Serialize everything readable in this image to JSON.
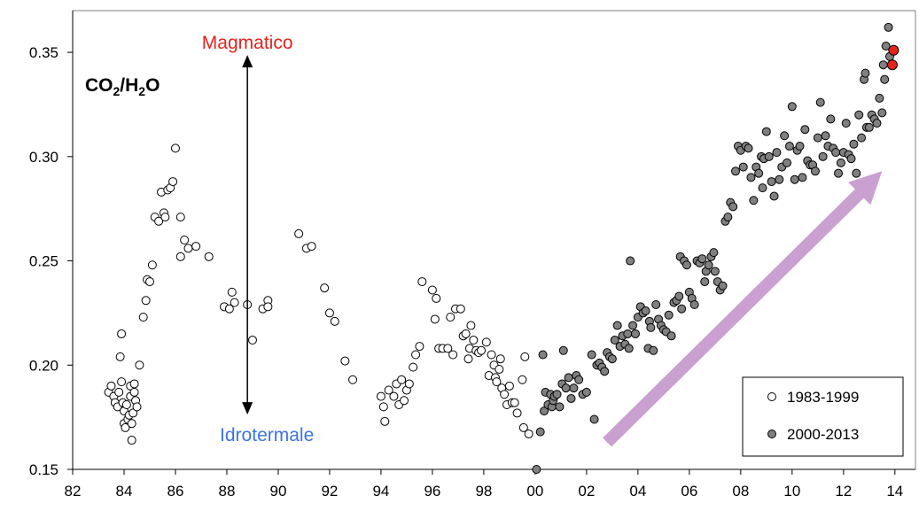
{
  "colors": {
    "open_marker_fill": "#ffffff",
    "marker_stroke": "#000000",
    "filled_marker": "#808080",
    "highlight_marker": "#e4231c",
    "magmatic_text": "#e4231c",
    "hydrothermal_text": "#3b74e8",
    "trend_arrow": "#c9a0d0"
  },
  "chart_data": {
    "type": "scatter",
    "title": "",
    "ratio_label": {
      "base1": "CO",
      "sub1": "2",
      "mid": "/H",
      "sub2": "2",
      "tail": "O"
    },
    "xlabel": "",
    "ylabel": "",
    "xlim": [
      1982,
      2014.8
    ],
    "ylim": [
      0.15,
      0.37
    ],
    "x_ticks": [
      1982,
      1984,
      1986,
      1988,
      1990,
      1992,
      1994,
      1996,
      1998,
      2000,
      2002,
      2004,
      2006,
      2008,
      2010,
      2012,
      2014
    ],
    "x_tick_labels": [
      "82",
      "84",
      "86",
      "88",
      "90",
      "92",
      "94",
      "96",
      "98",
      "00",
      "02",
      "04",
      "06",
      "08",
      "10",
      "12",
      "14"
    ],
    "y_ticks": [
      0.15,
      0.2,
      0.25,
      0.3,
      0.35
    ],
    "y_tick_labels": [
      "0.15",
      "0.20",
      "0.25",
      "0.30",
      "0.35"
    ],
    "grid": false,
    "legend_position": "bottom-right",
    "annotations": {
      "magmatic": "Magmatico",
      "hydrothermal": "Idrotermale",
      "double_arrow": {
        "x": 1988.8,
        "y_from": 0.178,
        "y_to": 0.347
      },
      "trend_arrow": {
        "x0": 2002.8,
        "y0": 0.163,
        "x1": 2013.5,
        "y1": 0.293
      }
    },
    "series": [
      {
        "name": "1983-1999",
        "marker": "open",
        "points": [
          [
            1983.4,
            0.187
          ],
          [
            1983.5,
            0.19
          ],
          [
            1983.6,
            0.185
          ],
          [
            1983.65,
            0.182
          ],
          [
            1983.75,
            0.18
          ],
          [
            1983.8,
            0.187
          ],
          [
            1983.85,
            0.204
          ],
          [
            1983.9,
            0.215
          ],
          [
            1983.9,
            0.192
          ],
          [
            1983.95,
            0.182
          ],
          [
            1984.0,
            0.178
          ],
          [
            1984.0,
            0.172
          ],
          [
            1984.05,
            0.17
          ],
          [
            1984.1,
            0.181
          ],
          [
            1984.15,
            0.174
          ],
          [
            1984.2,
            0.176
          ],
          [
            1984.25,
            0.185
          ],
          [
            1984.25,
            0.19
          ],
          [
            1984.3,
            0.172
          ],
          [
            1984.3,
            0.164
          ],
          [
            1984.35,
            0.177
          ],
          [
            1984.4,
            0.187
          ],
          [
            1984.4,
            0.191
          ],
          [
            1984.45,
            0.183
          ],
          [
            1984.5,
            0.18
          ],
          [
            1984.6,
            0.2
          ],
          [
            1984.75,
            0.223
          ],
          [
            1984.85,
            0.231
          ],
          [
            1984.9,
            0.241
          ],
          [
            1985.0,
            0.24
          ],
          [
            1985.1,
            0.248
          ],
          [
            1985.2,
            0.271
          ],
          [
            1985.35,
            0.269
          ],
          [
            1985.45,
            0.283
          ],
          [
            1985.55,
            0.273
          ],
          [
            1985.6,
            0.271
          ],
          [
            1985.7,
            0.284
          ],
          [
            1985.8,
            0.285
          ],
          [
            1985.9,
            0.288
          ],
          [
            1986.0,
            0.304
          ],
          [
            1986.2,
            0.271
          ],
          [
            1986.2,
            0.252
          ],
          [
            1986.35,
            0.26
          ],
          [
            1986.5,
            0.256
          ],
          [
            1986.8,
            0.257
          ],
          [
            1987.3,
            0.252
          ],
          [
            1987.9,
            0.228
          ],
          [
            1988.1,
            0.227
          ],
          [
            1988.2,
            0.235
          ],
          [
            1988.3,
            0.23
          ],
          [
            1988.8,
            0.229
          ],
          [
            1989.0,
            0.212
          ],
          [
            1989.4,
            0.227
          ],
          [
            1989.6,
            0.231
          ],
          [
            1989.6,
            0.228
          ],
          [
            1990.8,
            0.263
          ],
          [
            1991.1,
            0.256
          ],
          [
            1991.3,
            0.257
          ],
          [
            1991.8,
            0.237
          ],
          [
            1992.0,
            0.225
          ],
          [
            1992.2,
            0.221
          ],
          [
            1992.6,
            0.202
          ],
          [
            1992.9,
            0.193
          ],
          [
            1994.0,
            0.185
          ],
          [
            1994.1,
            0.18
          ],
          [
            1994.15,
            0.173
          ],
          [
            1994.3,
            0.188
          ],
          [
            1994.5,
            0.185
          ],
          [
            1994.6,
            0.191
          ],
          [
            1994.7,
            0.181
          ],
          [
            1994.8,
            0.193
          ],
          [
            1994.9,
            0.183
          ],
          [
            1995.0,
            0.188
          ],
          [
            1995.1,
            0.191
          ],
          [
            1995.25,
            0.199
          ],
          [
            1995.35,
            0.205
          ],
          [
            1995.5,
            0.209
          ],
          [
            1995.6,
            0.24
          ],
          [
            1996.0,
            0.236
          ],
          [
            1996.1,
            0.222
          ],
          [
            1996.15,
            0.232
          ],
          [
            1996.25,
            0.208
          ],
          [
            1996.4,
            0.208
          ],
          [
            1996.6,
            0.208
          ],
          [
            1996.7,
            0.223
          ],
          [
            1996.8,
            0.205
          ],
          [
            1996.9,
            0.227
          ],
          [
            1997.1,
            0.227
          ],
          [
            1997.2,
            0.214
          ],
          [
            1997.3,
            0.215
          ],
          [
            1997.4,
            0.203
          ],
          [
            1997.45,
            0.208
          ],
          [
            1997.5,
            0.219
          ],
          [
            1997.6,
            0.212
          ],
          [
            1997.7,
            0.207
          ],
          [
            1997.8,
            0.206
          ],
          [
            1997.9,
            0.207
          ],
          [
            1998.1,
            0.211
          ],
          [
            1998.2,
            0.195
          ],
          [
            1998.3,
            0.205
          ],
          [
            1998.4,
            0.2
          ],
          [
            1998.45,
            0.194
          ],
          [
            1998.5,
            0.192
          ],
          [
            1998.6,
            0.198
          ],
          [
            1998.65,
            0.203
          ],
          [
            1998.7,
            0.189
          ],
          [
            1998.8,
            0.186
          ],
          [
            1998.9,
            0.181
          ],
          [
            1999.0,
            0.19
          ],
          [
            1999.1,
            0.182
          ],
          [
            1999.2,
            0.182
          ],
          [
            1999.3,
            0.177
          ],
          [
            1999.5,
            0.193
          ],
          [
            1999.55,
            0.17
          ],
          [
            1999.6,
            0.204
          ],
          [
            1999.75,
            0.167
          ]
        ]
      },
      {
        "name": "2000-2013",
        "marker": "filled",
        "points": [
          [
            2000.05,
            0.15
          ],
          [
            2000.2,
            0.168
          ],
          [
            2000.3,
            0.205
          ],
          [
            2000.35,
            0.178
          ],
          [
            2000.4,
            0.187
          ],
          [
            2000.5,
            0.181
          ],
          [
            2000.6,
            0.186
          ],
          [
            2000.65,
            0.18
          ],
          [
            2000.7,
            0.183
          ],
          [
            2000.75,
            0.185
          ],
          [
            2000.85,
            0.186
          ],
          [
            2000.95,
            0.18
          ],
          [
            2001.05,
            0.191
          ],
          [
            2001.1,
            0.207
          ],
          [
            2001.2,
            0.189
          ],
          [
            2001.3,
            0.194
          ],
          [
            2001.4,
            0.184
          ],
          [
            2001.5,
            0.189
          ],
          [
            2001.6,
            0.195
          ],
          [
            2001.7,
            0.193
          ],
          [
            2001.85,
            0.186
          ],
          [
            2002.0,
            0.187
          ],
          [
            2002.2,
            0.205
          ],
          [
            2002.3,
            0.174
          ],
          [
            2002.4,
            0.2
          ],
          [
            2002.5,
            0.201
          ],
          [
            2002.6,
            0.199
          ],
          [
            2002.7,
            0.197
          ],
          [
            2002.8,
            0.206
          ],
          [
            2002.9,
            0.204
          ],
          [
            2003.0,
            0.203
          ],
          [
            2003.1,
            0.212
          ],
          [
            2003.2,
            0.219
          ],
          [
            2003.3,
            0.209
          ],
          [
            2003.4,
            0.214
          ],
          [
            2003.5,
            0.21
          ],
          [
            2003.6,
            0.215
          ],
          [
            2003.65,
            0.208
          ],
          [
            2003.7,
            0.25
          ],
          [
            2003.8,
            0.219
          ],
          [
            2003.9,
            0.215
          ],
          [
            2004.0,
            0.223
          ],
          [
            2004.1,
            0.228
          ],
          [
            2004.2,
            0.225
          ],
          [
            2004.3,
            0.226
          ],
          [
            2004.4,
            0.208
          ],
          [
            2004.45,
            0.221
          ],
          [
            2004.5,
            0.218
          ],
          [
            2004.6,
            0.207
          ],
          [
            2004.7,
            0.229
          ],
          [
            2004.8,
            0.222
          ],
          [
            2004.9,
            0.219
          ],
          [
            2005.0,
            0.217
          ],
          [
            2005.1,
            0.216
          ],
          [
            2005.2,
            0.224
          ],
          [
            2005.3,
            0.214
          ],
          [
            2005.4,
            0.23
          ],
          [
            2005.5,
            0.231
          ],
          [
            2005.6,
            0.233
          ],
          [
            2005.65,
            0.252
          ],
          [
            2005.7,
            0.227
          ],
          [
            2005.8,
            0.25
          ],
          [
            2005.9,
            0.248
          ],
          [
            2006.0,
            0.235
          ],
          [
            2006.1,
            0.232
          ],
          [
            2006.2,
            0.229
          ],
          [
            2006.3,
            0.25
          ],
          [
            2006.4,
            0.249
          ],
          [
            2006.5,
            0.251
          ],
          [
            2006.6,
            0.24
          ],
          [
            2006.65,
            0.245
          ],
          [
            2006.75,
            0.248
          ],
          [
            2006.85,
            0.252
          ],
          [
            2006.95,
            0.254
          ],
          [
            2007.0,
            0.245
          ],
          [
            2007.1,
            0.24
          ],
          [
            2007.2,
            0.236
          ],
          [
            2007.3,
            0.238
          ],
          [
            2007.4,
            0.269
          ],
          [
            2007.5,
            0.271
          ],
          [
            2007.6,
            0.278
          ],
          [
            2007.7,
            0.276
          ],
          [
            2007.8,
            0.293
          ],
          [
            2007.9,
            0.305
          ],
          [
            2008.0,
            0.303
          ],
          [
            2008.1,
            0.295
          ],
          [
            2008.2,
            0.305
          ],
          [
            2008.3,
            0.304
          ],
          [
            2008.4,
            0.29
          ],
          [
            2008.5,
            0.279
          ],
          [
            2008.6,
            0.295
          ],
          [
            2008.7,
            0.292
          ],
          [
            2008.8,
            0.3
          ],
          [
            2008.85,
            0.285
          ],
          [
            2008.9,
            0.299
          ],
          [
            2009.0,
            0.312
          ],
          [
            2009.1,
            0.3
          ],
          [
            2009.2,
            0.288
          ],
          [
            2009.3,
            0.281
          ],
          [
            2009.4,
            0.302
          ],
          [
            2009.5,
            0.289
          ],
          [
            2009.6,
            0.295
          ],
          [
            2009.7,
            0.31
          ],
          [
            2009.8,
            0.297
          ],
          [
            2009.9,
            0.305
          ],
          [
            2010.0,
            0.324
          ],
          [
            2010.1,
            0.289
          ],
          [
            2010.2,
            0.303
          ],
          [
            2010.3,
            0.305
          ],
          [
            2010.4,
            0.29
          ],
          [
            2010.5,
            0.313
          ],
          [
            2010.6,
            0.298
          ],
          [
            2010.7,
            0.296
          ],
          [
            2010.8,
            0.296
          ],
          [
            2010.9,
            0.293
          ],
          [
            2011.0,
            0.309
          ],
          [
            2011.1,
            0.326
          ],
          [
            2011.2,
            0.3
          ],
          [
            2011.3,
            0.31
          ],
          [
            2011.4,
            0.305
          ],
          [
            2011.5,
            0.318
          ],
          [
            2011.6,
            0.304
          ],
          [
            2011.7,
            0.302
          ],
          [
            2011.8,
            0.292
          ],
          [
            2011.9,
            0.297
          ],
          [
            2012.0,
            0.302
          ],
          [
            2012.1,
            0.316
          ],
          [
            2012.2,
            0.301
          ],
          [
            2012.3,
            0.299
          ],
          [
            2012.4,
            0.306
          ],
          [
            2012.5,
            0.292
          ],
          [
            2012.6,
            0.32
          ],
          [
            2012.7,
            0.309
          ],
          [
            2012.8,
            0.337
          ],
          [
            2012.85,
            0.34
          ],
          [
            2012.9,
            0.314
          ],
          [
            2013.0,
            0.314
          ],
          [
            2013.1,
            0.32
          ],
          [
            2013.2,
            0.318
          ],
          [
            2013.3,
            0.316
          ],
          [
            2013.4,
            0.328
          ],
          [
            2013.5,
            0.321
          ],
          [
            2013.55,
            0.344
          ],
          [
            2013.6,
            0.337
          ],
          [
            2013.65,
            0.353
          ],
          [
            2013.75,
            0.362
          ],
          [
            2013.8,
            0.348
          ]
        ]
      }
    ],
    "highlight_points": [
      [
        2013.9,
        0.344
      ],
      [
        2013.95,
        0.351
      ]
    ]
  }
}
